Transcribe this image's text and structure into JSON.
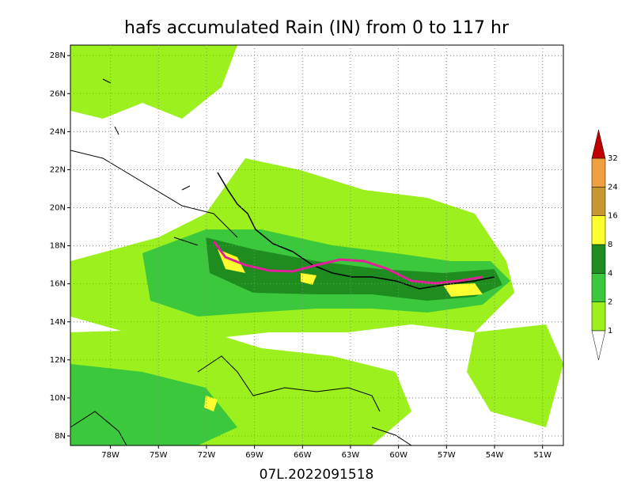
{
  "title": "hafs accumulated Rain (IN) from 0 to 117 hr",
  "footer": "07L.2022091518",
  "map": {
    "xlim": [
      -80.5,
      -49.7
    ],
    "ylim": [
      7.5,
      28.55
    ],
    "xticks": [
      {
        "value": -78,
        "label": "78W"
      },
      {
        "value": -75,
        "label": "75W"
      },
      {
        "value": -72,
        "label": "72W"
      },
      {
        "value": -69,
        "label": "69W"
      },
      {
        "value": -66,
        "label": "66W"
      },
      {
        "value": -63,
        "label": "63W"
      },
      {
        "value": -60,
        "label": "60W"
      },
      {
        "value": -57,
        "label": "57W"
      },
      {
        "value": -54,
        "label": "54W"
      },
      {
        "value": -51,
        "label": "51W"
      }
    ],
    "yticks": [
      {
        "value": 8,
        "label": "8N"
      },
      {
        "value": 10,
        "label": "10N"
      },
      {
        "value": 12,
        "label": "12N"
      },
      {
        "value": 14,
        "label": "14N"
      },
      {
        "value": 16,
        "label": "16N"
      },
      {
        "value": 18,
        "label": "18N"
      },
      {
        "value": 20,
        "label": "20N"
      },
      {
        "value": 22,
        "label": "22N"
      },
      {
        "value": 24,
        "label": "24N"
      },
      {
        "value": 26,
        "label": "26N"
      },
      {
        "value": 28,
        "label": "28N"
      }
    ],
    "grid": true
  },
  "colorbar": {
    "levels": [
      1,
      2,
      4,
      8,
      16,
      24,
      32
    ],
    "colors": [
      "#9cf01e",
      "#3cc83c",
      "#1e8c1e",
      "#ffff30",
      "#c89632",
      "#f0a040",
      "#c00000"
    ]
  }
}
